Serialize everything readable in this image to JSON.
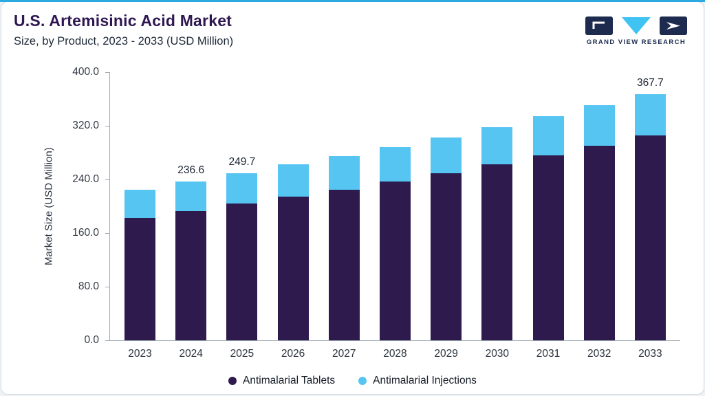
{
  "header": {
    "title": "U.S. Artemisinic Acid Market",
    "subtitle": "Size, by Product, 2023 - 2033 (USD Million)",
    "brand": "GRAND VIEW RESEARCH"
  },
  "chart_data": {
    "type": "bar",
    "stacked": true,
    "title": "U.S. Artemisinic Acid Market Size, by Product, 2023 - 2033 (USD Million)",
    "categories": [
      "2023",
      "2024",
      "2025",
      "2026",
      "2027",
      "2028",
      "2029",
      "2030",
      "2031",
      "2032",
      "2033"
    ],
    "series": [
      {
        "name": "Antimalarial Tablets",
        "color": "#2e1a4d",
        "values": [
          182.9,
          192.6,
          203.7,
          214.1,
          225.1,
          236.7,
          249.1,
          262.1,
          275.9,
          290.4,
          305.7
        ]
      },
      {
        "name": "Antimalarial Injections",
        "color": "#56c5f1",
        "values": [
          42.0,
          44.0,
          46.0,
          48.0,
          50.0,
          52.0,
          54.0,
          56.0,
          58.0,
          60.0,
          62.0
        ]
      }
    ],
    "totals": [
      224.9,
      236.6,
      249.7,
      262.1,
      275.1,
      288.7,
      303.1,
      318.1,
      333.9,
      350.4,
      367.7
    ],
    "bar_labels": [
      "",
      "236.6",
      "249.7",
      "",
      "",
      "",
      "",
      "",
      "",
      "",
      "367.7"
    ],
    "xlabel": "",
    "ylabel": "Market Size (USD Million)",
    "yticks": [
      "400.0",
      "320.0",
      "240.0",
      "160.0",
      "80.0",
      "0.0"
    ],
    "ylim": [
      0,
      400
    ],
    "grid": false,
    "legend_position": "bottom",
    "accent_color": "#29abe2",
    "title_color": "#2f1752"
  }
}
